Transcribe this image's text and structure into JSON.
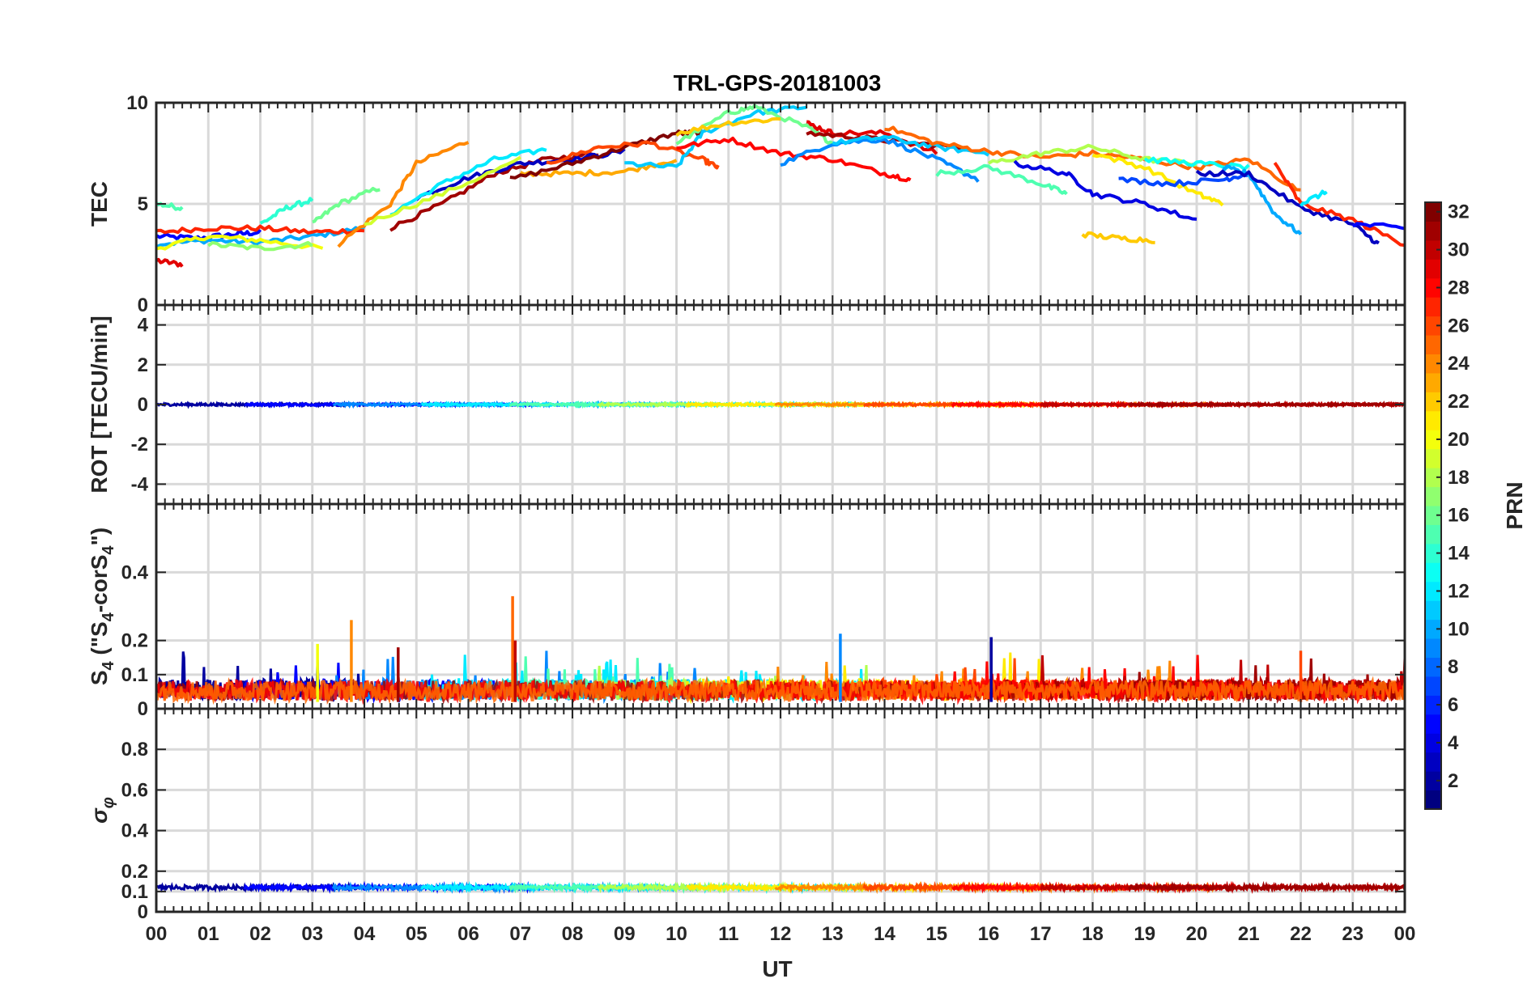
{
  "chart_data": {
    "type": "line",
    "title": "TRL-GPS-20181003",
    "xlabel": "UT",
    "x_ticks": [
      "00",
      "01",
      "02",
      "03",
      "04",
      "05",
      "06",
      "07",
      "08",
      "09",
      "10",
      "11",
      "12",
      "13",
      "14",
      "15",
      "16",
      "17",
      "18",
      "19",
      "20",
      "21",
      "22",
      "23",
      "00"
    ],
    "xlim": [
      0,
      24
    ],
    "grid": true,
    "colorbar": {
      "label": "PRN",
      "range": [
        1,
        32
      ],
      "ticks": [
        "2",
        "4",
        "6",
        "8",
        "10",
        "12",
        "14",
        "16",
        "18",
        "20",
        "22",
        "24",
        "26",
        "28",
        "30",
        "32"
      ],
      "colormap": "jet"
    },
    "panels": [
      {
        "id": "tec",
        "ylabel": "TEC",
        "ylim": [
          0,
          10
        ],
        "y_ticks": [
          "0",
          "5",
          "10"
        ],
        "series": [
          {
            "prn": 5,
            "x": [
              0.0,
              0.8,
              1.5,
              2.0
            ],
            "y": [
              3.4,
              3.3,
              3.5,
              3.6
            ]
          },
          {
            "prn": 29,
            "x": [
              0.0,
              0.5
            ],
            "y": [
              2.2,
              2.0
            ]
          },
          {
            "prn": 15,
            "x": [
              0.0,
              0.5
            ],
            "y": [
              5.0,
              4.8
            ]
          },
          {
            "prn": 10,
            "x": [
              0.0,
              1.0,
              2.0,
              3.0,
              4.0
            ],
            "y": [
              3.0,
              3.2,
              3.1,
              3.4,
              3.8
            ]
          },
          {
            "prn": 20,
            "x": [
              0.0,
              1.0,
              2.0,
              3.2
            ],
            "y": [
              2.8,
              3.4,
              3.2,
              2.8
            ]
          },
          {
            "prn": 27,
            "x": [
              0.0,
              1.0,
              2.0,
              3.0,
              4.0
            ],
            "y": [
              3.6,
              3.8,
              3.8,
              3.6,
              3.7
            ]
          },
          {
            "prn": 14,
            "x": [
              2.0,
              2.5,
              3.0
            ],
            "y": [
              4.0,
              4.8,
              5.2
            ]
          },
          {
            "prn": 16,
            "x": [
              3.0,
              3.5,
              4.3
            ],
            "y": [
              4.0,
              5.0,
              5.8
            ]
          },
          {
            "prn": 17,
            "x": [
              1.0,
              2.0,
              3.0
            ],
            "y": [
              3.0,
              2.8,
              3.0
            ]
          },
          {
            "prn": 24,
            "x": [
              3.5,
              4.5,
              5.0,
              6.0
            ],
            "y": [
              3.0,
              5.0,
              7.0,
              8.1
            ]
          },
          {
            "prn": 31,
            "x": [
              4.5,
              5.5,
              6.5,
              7.5,
              8.5
            ],
            "y": [
              3.8,
              5.0,
              6.5,
              7.2,
              7.5
            ]
          },
          {
            "prn": 3,
            "x": [
              5.0,
              6.0,
              7.0,
              8.0,
              9.0
            ],
            "y": [
              5.3,
              6.3,
              7.0,
              7.2,
              7.6
            ]
          },
          {
            "prn": 12,
            "x": [
              4.5,
              5.5,
              6.5,
              7.5
            ],
            "y": [
              4.5,
              6.0,
              7.2,
              7.7
            ]
          },
          {
            "prn": 19,
            "x": [
              4.0,
              5.5,
              7.0
            ],
            "y": [
              4.0,
              5.5,
              7.2
            ]
          },
          {
            "prn": 23,
            "x": [
              7.0,
              8.0,
              9.0,
              10.0
            ],
            "y": [
              6.5,
              6.5,
              6.6,
              7.2
            ]
          },
          {
            "prn": 32,
            "x": [
              6.8,
              8.0,
              9.0,
              10.0,
              10.5
            ],
            "y": [
              6.2,
              7.0,
              7.8,
              8.5,
              8.5
            ]
          },
          {
            "prn": 26,
            "x": [
              7.5,
              8.5,
              9.5,
              10.5,
              10.8
            ],
            "y": [
              7.0,
              7.8,
              8.0,
              7.2,
              6.8
            ]
          },
          {
            "prn": 11,
            "x": [
              9.0,
              10.0,
              10.5,
              11.5,
              12.5
            ],
            "y": [
              7.0,
              6.8,
              8.5,
              9.5,
              9.8
            ]
          },
          {
            "prn": 16,
            "x": [
              10.0,
              11.0,
              11.5,
              12.5,
              13.0
            ],
            "y": [
              8.0,
              9.5,
              9.8,
              8.8,
              8.0
            ]
          },
          {
            "prn": 22,
            "x": [
              10.0,
              11.0,
              12.0
            ],
            "y": [
              8.5,
              9.0,
              9.2
            ]
          },
          {
            "prn": 28,
            "x": [
              10.0,
              11.0,
              12.0,
              13.0,
              14.0,
              14.5
            ],
            "y": [
              7.8,
              8.2,
              7.5,
              7.2,
              6.5,
              6.2
            ]
          },
          {
            "prn": 29,
            "x": [
              12.5,
              13.0,
              14.0,
              15.0
            ],
            "y": [
              9.0,
              8.5,
              8.5,
              7.5
            ]
          },
          {
            "prn": 31,
            "x": [
              12.5,
              13.5,
              14.5,
              15.5
            ],
            "y": [
              8.5,
              8.3,
              8.0,
              7.8
            ]
          },
          {
            "prn": 9,
            "x": [
              12.0,
              13.0,
              14.0,
              15.0,
              15.8
            ],
            "y": [
              7.0,
              8.0,
              8.2,
              7.2,
              6.2
            ]
          },
          {
            "prn": 11,
            "x": [
              13.0,
              14.0,
              15.0,
              16.0
            ],
            "y": [
              8.0,
              8.3,
              7.8,
              7.5
            ]
          },
          {
            "prn": 25,
            "x": [
              14.0,
              15.0,
              16.0,
              17.0,
              18.0,
              19.0,
              20.0,
              21.0,
              22.0
            ],
            "y": [
              8.8,
              8.0,
              7.6,
              7.3,
              7.5,
              7.2,
              6.8,
              7.2,
              5.6
            ]
          },
          {
            "prn": 15,
            "x": [
              15.0,
              16.0,
              17.0,
              17.5
            ],
            "y": [
              6.5,
              6.8,
              6.0,
              5.5
            ]
          },
          {
            "prn": 18,
            "x": [
              16.0,
              17.0,
              18.0,
              19.0,
              20.0
            ],
            "y": [
              7.0,
              7.5,
              7.8,
              7.2,
              7.0
            ]
          },
          {
            "prn": 4,
            "x": [
              16.5,
              17.5,
              18.0,
              19.0,
              20.0
            ],
            "y": [
              7.0,
              6.5,
              5.5,
              5.0,
              4.2
            ]
          },
          {
            "prn": 21,
            "x": [
              18.0,
              19.0,
              20.0,
              20.5
            ],
            "y": [
              7.5,
              6.8,
              5.5,
              5.0
            ]
          },
          {
            "prn": 22,
            "x": [
              17.8,
              18.5,
              19.2
            ],
            "y": [
              3.5,
              3.3,
              3.2
            ]
          },
          {
            "prn": 7,
            "x": [
              18.5,
              19.5,
              20.5,
              21.0
            ],
            "y": [
              6.2,
              6.0,
              6.2,
              6.5
            ]
          },
          {
            "prn": 13,
            "x": [
              19.0,
              20.0,
              21.0
            ],
            "y": [
              7.2,
              7.0,
              6.8
            ]
          },
          {
            "prn": 10,
            "x": [
              20.5,
              21.0,
              21.5,
              22.0
            ],
            "y": [
              6.8,
              6.5,
              4.5,
              3.5
            ]
          },
          {
            "prn": 3,
            "x": [
              20.0,
              21.0,
              22.0,
              23.0,
              23.5
            ],
            "y": [
              6.5,
              6.5,
              4.8,
              4.0,
              3.0
            ]
          },
          {
            "prn": 27,
            "x": [
              21.5,
              22.0,
              23.0,
              24.0
            ],
            "y": [
              7.0,
              5.0,
              4.2,
              3.0
            ]
          },
          {
            "prn": 12,
            "x": [
              22.0,
              22.5
            ],
            "y": [
              5.0,
              5.6
            ]
          },
          {
            "prn": 5,
            "x": [
              23.0,
              24.0
            ],
            "y": [
              4.0,
              3.8
            ]
          }
        ]
      },
      {
        "id": "rot",
        "ylabel": "ROT [TECU/min]",
        "ylim": [
          -5,
          5
        ],
        "y_ticks": [
          "-4",
          "-2",
          "0",
          "2",
          "4"
        ],
        "baseline": 0.0,
        "amplitude": 0.12
      },
      {
        "id": "s4",
        "ylabel": "S4 (\"S4-corS4\")",
        "ylim": [
          0,
          0.6
        ],
        "y_ticks": [
          "0",
          "0.1",
          "0.2",
          "0.4"
        ],
        "baseline": 0.05,
        "amplitude": 0.06,
        "peaks": [
          {
            "x": 3.75,
            "y": 0.26,
            "prn": 24
          },
          {
            "x": 6.85,
            "y": 0.33,
            "prn": 25
          },
          {
            "x": 6.9,
            "y": 0.2,
            "prn": 30
          },
          {
            "x": 13.15,
            "y": 0.22,
            "prn": 9
          },
          {
            "x": 16.05,
            "y": 0.21,
            "prn": 2
          },
          {
            "x": 3.1,
            "y": 0.19,
            "prn": 20
          },
          {
            "x": 4.65,
            "y": 0.18,
            "prn": 31
          },
          {
            "x": 22.0,
            "y": 0.17,
            "prn": 26
          }
        ]
      },
      {
        "id": "sigma",
        "ylabel": "σφ",
        "ylim": [
          0,
          1
        ],
        "y_ticks": [
          "0",
          "0.1",
          "0.2",
          "0.4",
          "0.6",
          "0.8"
        ],
        "baseline": 0.12,
        "amplitude": 0.02
      }
    ]
  }
}
